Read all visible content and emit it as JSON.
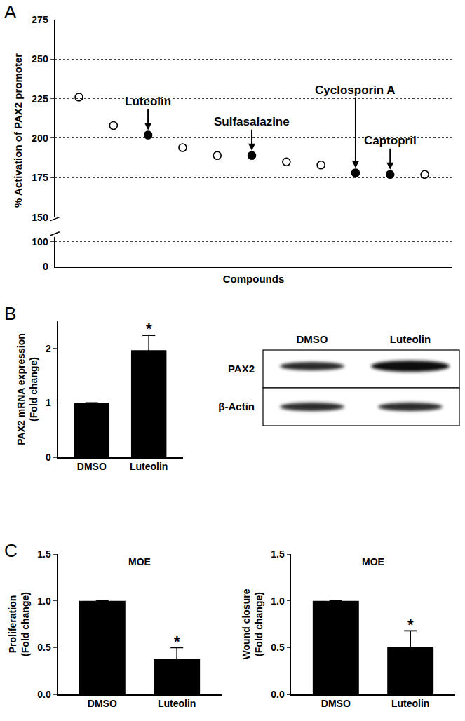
{
  "panel_labels": [
    "A",
    "B",
    "C"
  ],
  "chart_data": [
    {
      "type": "scatter",
      "ylabel": "% Activation of PAX2 promoter",
      "xlabel": "Compounds",
      "x": [
        1,
        2,
        3,
        4,
        5,
        6,
        7,
        8,
        9,
        10,
        11
      ],
      "series": [
        {
          "marker": "circle-open",
          "color": "#000000",
          "values": [
            226,
            208,
            null,
            194,
            189,
            null,
            185,
            183,
            null,
            null,
            177
          ]
        },
        {
          "marker": "circle",
          "color": "#000000",
          "values": [
            null,
            null,
            202,
            null,
            null,
            189,
            null,
            null,
            178,
            177,
            null
          ]
        }
      ],
      "xlim": [
        0.3,
        11.8
      ],
      "ylim": [
        150,
        275
      ],
      "yticks": [
        150,
        175,
        200,
        225,
        250,
        275
      ],
      "y2lim": [
        0,
        120
      ],
      "y2ticks": [
        0,
        100
      ],
      "grid": true,
      "tick_labels": "y",
      "annotations": [
        {
          "text": "Luteolin",
          "x": 3,
          "y": 202
        },
        {
          "text": "Sulfasalazine",
          "x": 6,
          "y": 189
        },
        {
          "text": "Cyclosporin A",
          "x": 9,
          "y": 178
        },
        {
          "text": "Captopril",
          "x": 10,
          "y": 177
        }
      ]
    },
    {
      "type": "bar",
      "ylabel": "PAX2 mRNA expression\n(Fold change)",
      "categories": [
        "DMSO",
        "Luteolin"
      ],
      "values": [
        1,
        1.97
      ],
      "errors": [
        null,
        0.27
      ],
      "color": "#000000",
      "ylim": [
        0,
        2.5
      ],
      "yticks": [
        0,
        1,
        2
      ],
      "annotations": [
        {
          "text": "*",
          "x": 1,
          "y": 2.36
        }
      ]
    },
    {
      "type": "bar",
      "title": "MOE",
      "ylabel": "Proliferation\n(Fold change)",
      "categories": [
        "DMSO",
        "Luteolin"
      ],
      "values": [
        1,
        0.38
      ],
      "errors": [
        null,
        0.12
      ],
      "color": "#000000",
      "ylim": [
        0,
        1.5
      ],
      "yticks": [
        {
          "value": 0,
          "label": "0.0"
        },
        {
          "value": 0.5,
          "label": "0.5"
        },
        {
          "value": 1,
          "label": "1.0"
        },
        {
          "value": 1.5,
          "label": "1.5"
        }
      ],
      "annotations": [
        {
          "text": "*",
          "x": 1,
          "y": 0.57
        }
      ]
    },
    {
      "type": "bar",
      "title": "MOE",
      "ylabel": "Wound closure\n(Fold change)",
      "categories": [
        "DMSO",
        "Luteolin"
      ],
      "values": [
        1,
        0.51
      ],
      "errors": [
        null,
        0.17
      ],
      "color": "#000000",
      "ylim": [
        0,
        1.5
      ],
      "yticks": [
        {
          "value": 0,
          "label": "0.0"
        },
        {
          "value": 0.5,
          "label": "0.5"
        },
        {
          "value": 1,
          "label": "1.0"
        },
        {
          "value": 1.5,
          "label": "1.5"
        }
      ],
      "annotations": [
        {
          "text": "*",
          "x": 1,
          "y": 0.75
        }
      ]
    }
  ],
  "blot": {
    "columns": [
      "DMSO",
      "Luteolin"
    ],
    "rows": [
      "PAX2",
      "β-Actin"
    ]
  }
}
